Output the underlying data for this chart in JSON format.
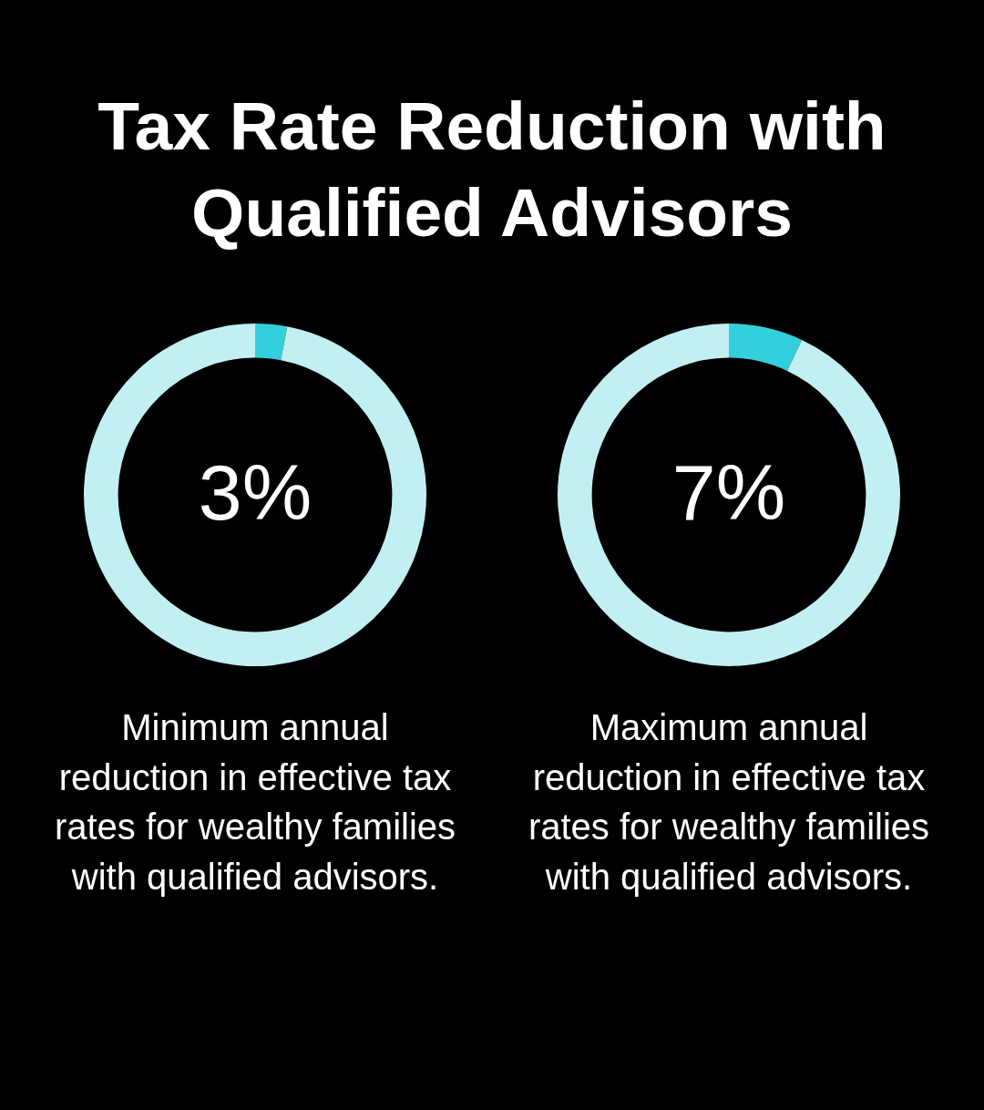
{
  "chart_data": [
    {
      "type": "donut",
      "title": "Tax Rate Reduction with\nQualified Advisors",
      "categories": [
        null,
        null
      ],
      "values": [
        3,
        97
      ],
      "colors": [
        "#33cfdc",
        "#c2f0f2"
      ],
      "value_labels": [
        "3%",
        null
      ],
      "annotations": [
        "Minimum annual\nreduction in effective tax\nrates for wealthy families\nwith qualified advisors."
      ]
    },
    {
      "type": "donut",
      "categories": [
        null,
        null
      ],
      "values": [
        7,
        93
      ],
      "colors": [
        "#33cfdc",
        "#c2f0f2"
      ],
      "value_labels": [
        "7%",
        null
      ],
      "annotations": [
        "Maximum annual\nreduction in effective tax\nrates for wealthy families\nwith qualified advisors."
      ]
    }
  ]
}
